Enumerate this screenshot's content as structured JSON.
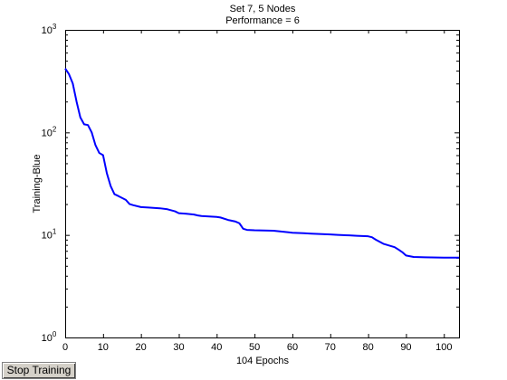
{
  "chart_data": {
    "type": "line",
    "title": "Set 7, 5 Nodes",
    "subtitle": "Performance = 6",
    "xlabel": "104 Epochs",
    "ylabel": "Training-Blue",
    "xlim": [
      0,
      104
    ],
    "ylim": [
      1,
      1000
    ],
    "yscale": "log",
    "grid": false,
    "x_ticks": [
      0,
      10,
      20,
      30,
      40,
      50,
      60,
      70,
      80,
      90,
      100
    ],
    "y_ticks": [
      {
        "value": 1,
        "base": "10",
        "exp": "0"
      },
      {
        "value": 10,
        "base": "10",
        "exp": "1"
      },
      {
        "value": 100,
        "base": "10",
        "exp": "2"
      },
      {
        "value": 1000,
        "base": "10",
        "exp": "3"
      }
    ],
    "series": [
      {
        "color": "#0000ff",
        "x": [
          0,
          1,
          2,
          3,
          4,
          5,
          6,
          7,
          8,
          9,
          10,
          11,
          12,
          13,
          14,
          16,
          17,
          18,
          20,
          22,
          25,
          27,
          29,
          30,
          32,
          34,
          35,
          36,
          40,
          41,
          43,
          45,
          46,
          47,
          48,
          50,
          55,
          57,
          59,
          60,
          63,
          65,
          70,
          72,
          75,
          77,
          80,
          81,
          82,
          84,
          86,
          87,
          88,
          89,
          90,
          92,
          95,
          100,
          104
        ],
        "y": [
          420,
          370,
          300,
          200,
          140,
          120,
          118,
          100,
          75,
          63,
          60,
          40,
          30,
          25,
          24,
          22,
          20,
          19.5,
          18.7,
          18.5,
          18.2,
          17.8,
          17,
          16.3,
          16.1,
          15.8,
          15.5,
          15.3,
          15,
          14.8,
          14,
          13.5,
          13,
          11.5,
          11.2,
          11.1,
          11,
          10.8,
          10.6,
          10.5,
          10.4,
          10.3,
          10.1,
          10,
          9.9,
          9.8,
          9.7,
          9.5,
          9,
          8.2,
          7.8,
          7.6,
          7.2,
          6.8,
          6.3,
          6.1,
          6.05,
          6,
          6
        ]
      }
    ]
  },
  "controls": {
    "stop_button_label": "Stop Training"
  }
}
